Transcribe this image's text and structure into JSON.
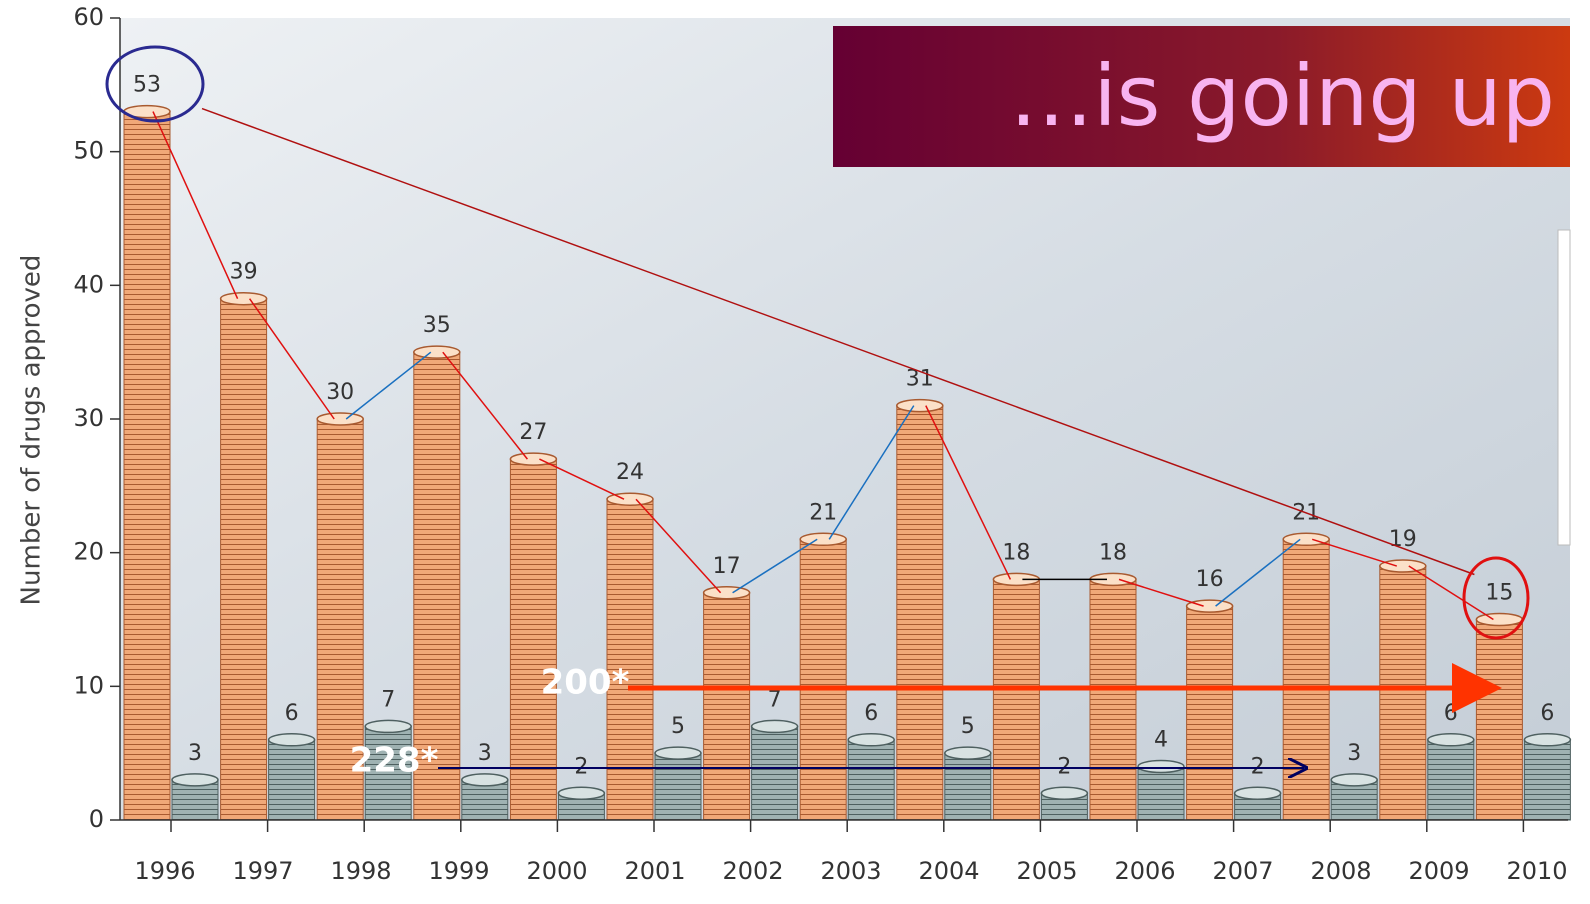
{
  "chart_data": {
    "type": "bar",
    "title": "…is going up",
    "ylabel": "Number of drugs approved",
    "categories": [
      "1996",
      "1997",
      "1998",
      "1999",
      "2000",
      "2001",
      "2002",
      "2003",
      "2004",
      "2005",
      "2006",
      "2007",
      "2008",
      "2009",
      "2010"
    ],
    "series": [
      {
        "color": "#f0a878",
        "values": [
          53,
          39,
          30,
          35,
          27,
          24,
          17,
          21,
          31,
          18,
          18,
          16,
          21,
          19,
          15
        ]
      },
      {
        "color": "#9fb2b2",
        "values": [
          3,
          6,
          7,
          3,
          2,
          5,
          7,
          6,
          5,
          2,
          4,
          2,
          3,
          6,
          6
        ]
      }
    ],
    "ylim": [
      0,
      60
    ],
    "yticks": [
      0,
      10,
      20,
      30,
      40,
      50,
      60
    ],
    "annotations": [
      "200*",
      "228*"
    ]
  }
}
